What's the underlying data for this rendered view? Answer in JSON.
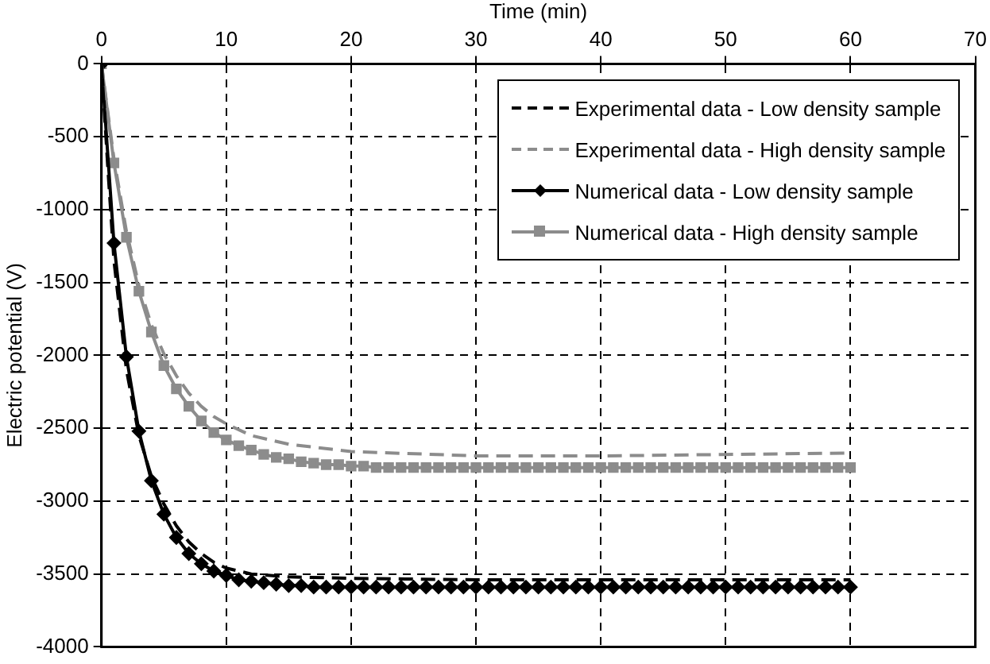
{
  "chart_data": {
    "type": "line",
    "xlabel": "Time (min)",
    "ylabel": "Electric potential (V)",
    "xlim": [
      0,
      70
    ],
    "xticks": [
      0,
      10,
      20,
      30,
      40,
      50,
      60,
      70
    ],
    "ylim": [
      -4000,
      0
    ],
    "yticks": [
      -4000,
      -3500,
      -3000,
      -2500,
      -2000,
      -1500,
      -1000,
      -500,
      0
    ],
    "grid": true,
    "legend": "top right",
    "series": [
      {
        "name": "Experimental data - Low density sample",
        "color": "#000000",
        "marker": "none",
        "line_style": "dashed",
        "x": [
          0,
          0.5,
          1,
          2,
          3,
          4,
          5,
          6,
          7,
          8,
          9,
          10,
          12,
          15,
          20,
          30,
          40,
          50,
          60
        ],
        "values": [
          0,
          -700,
          -1350,
          -2100,
          -2550,
          -2830,
          -3020,
          -3170,
          -3280,
          -3360,
          -3420,
          -3460,
          -3500,
          -3520,
          -3530,
          -3540,
          -3540,
          -3540,
          -3540
        ]
      },
      {
        "name": "Experimental data - High density sample",
        "color": "#8c8c8c",
        "marker": "none",
        "line_style": "dashed",
        "x": [
          0,
          1,
          2,
          3,
          4,
          5,
          6,
          7,
          8,
          9,
          10,
          12,
          15,
          20,
          30,
          40,
          50,
          60
        ],
        "values": [
          0,
          -650,
          -1150,
          -1520,
          -1790,
          -1990,
          -2140,
          -2260,
          -2350,
          -2420,
          -2470,
          -2550,
          -2610,
          -2660,
          -2690,
          -2690,
          -2680,
          -2670
        ]
      },
      {
        "name": "Numerical data - Low density sample",
        "color": "#000000",
        "marker": "diamond",
        "line_style": "solid",
        "x": [
          0,
          1,
          2,
          3,
          4,
          5,
          6,
          7,
          8,
          9,
          10,
          11,
          12,
          13,
          14,
          15,
          16,
          17,
          18,
          19,
          20,
          21,
          22,
          23,
          24,
          25,
          26,
          27,
          28,
          29,
          30,
          31,
          32,
          33,
          34,
          35,
          36,
          37,
          38,
          39,
          40,
          41,
          42,
          43,
          44,
          45,
          46,
          47,
          48,
          49,
          50,
          51,
          52,
          53,
          54,
          55,
          56,
          57,
          58,
          59,
          60
        ],
        "values": [
          0,
          -1230,
          -2010,
          -2520,
          -2860,
          -3090,
          -3250,
          -3360,
          -3430,
          -3480,
          -3510,
          -3540,
          -3550,
          -3560,
          -3570,
          -3580,
          -3580,
          -3590,
          -3590,
          -3590,
          -3590,
          -3590,
          -3590,
          -3590,
          -3590,
          -3590,
          -3590,
          -3590,
          -3590,
          -3590,
          -3590,
          -3590,
          -3590,
          -3590,
          -3590,
          -3590,
          -3590,
          -3590,
          -3590,
          -3590,
          -3590,
          -3590,
          -3590,
          -3590,
          -3590,
          -3590,
          -3590,
          -3590,
          -3590,
          -3590,
          -3590,
          -3590,
          -3590,
          -3590,
          -3590,
          -3590,
          -3590,
          -3590,
          -3590,
          -3590,
          -3590
        ]
      },
      {
        "name": "Numerical data - High density sample",
        "color": "#8c8c8c",
        "marker": "square",
        "line_style": "solid",
        "x": [
          0,
          1,
          2,
          3,
          4,
          5,
          6,
          7,
          8,
          9,
          10,
          11,
          12,
          13,
          14,
          15,
          16,
          17,
          18,
          19,
          20,
          21,
          22,
          23,
          24,
          25,
          26,
          27,
          28,
          29,
          30,
          31,
          32,
          33,
          34,
          35,
          36,
          37,
          38,
          39,
          40,
          41,
          42,
          43,
          44,
          45,
          46,
          47,
          48,
          49,
          50,
          51,
          52,
          53,
          54,
          55,
          56,
          57,
          58,
          59,
          60
        ],
        "values": [
          0,
          -680,
          -1190,
          -1560,
          -1840,
          -2070,
          -2230,
          -2350,
          -2450,
          -2530,
          -2580,
          -2620,
          -2650,
          -2680,
          -2700,
          -2710,
          -2730,
          -2740,
          -2750,
          -2750,
          -2760,
          -2760,
          -2770,
          -2770,
          -2770,
          -2770,
          -2770,
          -2770,
          -2770,
          -2770,
          -2770,
          -2770,
          -2770,
          -2770,
          -2770,
          -2770,
          -2770,
          -2770,
          -2770,
          -2770,
          -2770,
          -2770,
          -2770,
          -2770,
          -2770,
          -2770,
          -2770,
          -2770,
          -2770,
          -2770,
          -2770,
          -2770,
          -2770,
          -2770,
          -2770,
          -2770,
          -2770,
          -2770,
          -2770,
          -2770,
          -2770
        ]
      }
    ]
  }
}
